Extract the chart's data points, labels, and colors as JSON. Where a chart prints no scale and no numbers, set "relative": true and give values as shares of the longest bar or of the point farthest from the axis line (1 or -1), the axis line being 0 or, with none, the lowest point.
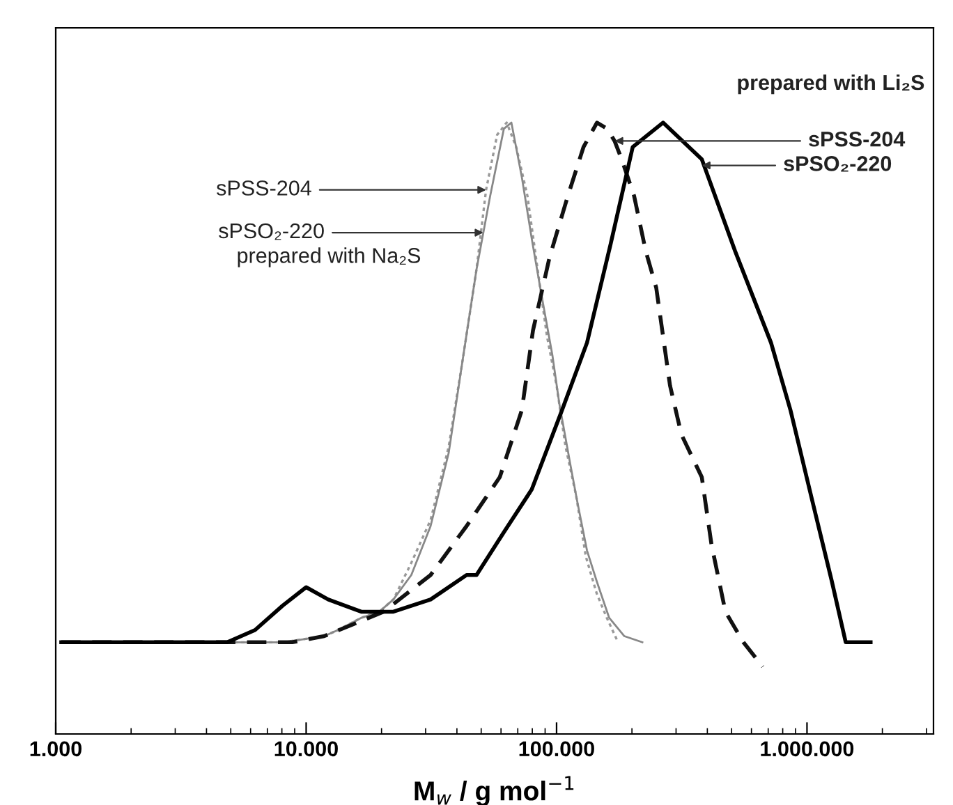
{
  "chart_data": {
    "type": "line",
    "relative": true,
    "log": "x",
    "xlabel": "M$_{w}$ / g mol$^{−1}$",
    "xlim": [
      1000,
      3200000
    ],
    "xticks": [
      {
        "value": 1000,
        "label": "1.000"
      },
      {
        "value": 10000,
        "label": "10.000"
      },
      {
        "value": 100000,
        "label": "100.000"
      },
      {
        "value": 1000000,
        "label": "1.000.000"
      }
    ],
    "series": [
      {
        "color": "#999999",
        "line_style": "dotted",
        "x": [
          4840,
          8060,
          11800,
          13400,
          16600,
          19600,
          22300,
          26300,
          31400,
          37100,
          42100,
          47900,
          52300,
          57900,
          63200,
          69000,
          76500,
          84000,
          91600,
          100000,
          108600,
          119700,
          130900,
          144600,
          158700,
          176000
        ],
        "values": [
          0.15,
          0.15,
          0.16,
          0.17,
          0.19,
          0.2,
          0.22,
          0.28,
          0.35,
          0.47,
          0.61,
          0.76,
          0.89,
          0.98,
          1.0,
          0.96,
          0.88,
          0.76,
          0.65,
          0.57,
          0.47,
          0.39,
          0.29,
          0.23,
          0.19,
          0.15
        ]
      },
      {
        "color": "#888888",
        "line_style": "solid",
        "x": [
          4840,
          8060,
          11800,
          13400,
          16600,
          19600,
          22300,
          26300,
          31400,
          37100,
          42100,
          47900,
          54300,
          61600,
          66000,
          72700,
          79600,
          86900,
          96200,
          102600,
          113600,
          121000,
          132300,
          144600,
          162200,
          186500,
          220100
        ],
        "values": [
          0.15,
          0.15,
          0.16,
          0.17,
          0.19,
          0.2,
          0.22,
          0.26,
          0.34,
          0.46,
          0.61,
          0.76,
          0.88,
          0.99,
          1.0,
          0.91,
          0.81,
          0.72,
          0.62,
          0.54,
          0.44,
          0.38,
          0.3,
          0.25,
          0.19,
          0.16,
          0.15
        ]
      },
      {
        "color": "#111111",
        "line_style": "dashed",
        "x": [
          1052,
          4840,
          8800,
          11800,
          20400,
          31400,
          43700,
          59300,
          72700,
          80500,
          93800,
          110900,
          128100,
          145000,
          159000,
          170500,
          182000,
          204000,
          227000,
          250000,
          283800,
          315000,
          380200,
          415500,
          472400,
          557200,
          665700
        ],
        "values": [
          0.15,
          0.15,
          0.15,
          0.16,
          0.2,
          0.26,
          0.34,
          0.42,
          0.53,
          0.66,
          0.78,
          0.88,
          0.96,
          1.0,
          0.99,
          0.97,
          0.94,
          0.88,
          0.79,
          0.73,
          0.57,
          0.49,
          0.42,
          0.31,
          0.2,
          0.15,
          0.11
        ]
      },
      {
        "color": "#000000",
        "line_style": "solid",
        "x": [
          1052,
          4840,
          6250,
          8060,
          10000,
          12250,
          16600,
          22300,
          31400,
          43700,
          47900,
          61600,
          79600,
          105200,
          132300,
          164100,
          201400,
          266200,
          380200,
          516200,
          718300,
          858700,
          1052000,
          1256000,
          1428000,
          1795000
        ],
        "values": [
          0.15,
          0.15,
          0.17,
          0.21,
          0.24,
          0.22,
          0.2,
          0.2,
          0.22,
          0.26,
          0.26,
          0.33,
          0.4,
          0.53,
          0.64,
          0.8,
          0.96,
          1.0,
          0.94,
          0.79,
          0.64,
          0.53,
          0.38,
          0.25,
          0.15,
          0.15
        ]
      }
    ],
    "annotations": [
      "prepared with Li₂S",
      {
        "text": "sPSS-204",
        "x": 170500,
        "y": 0.97
      },
      {
        "text": "sPSO₂-220",
        "x": 380200,
        "y": 0.93
      },
      {
        "text": "sPSS-204",
        "x": 52300,
        "y": 0.89
      },
      {
        "text": "sPSO₂-220",
        "x": 51000,
        "y": 0.82
      },
      "prepared with Na₂S"
    ]
  }
}
